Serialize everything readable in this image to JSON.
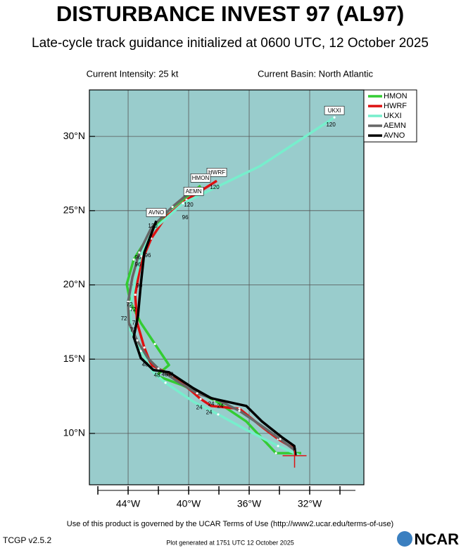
{
  "chart_data": {
    "type": "line",
    "title": "DISTURBANCE INVEST 97 (AL97)",
    "subtitle": "Late-cycle track guidance initialized at 0600 UTC, 12 October 2025",
    "intensity": "Current Intensity: 25 kt",
    "basin": "Current Basin: North Atlantic",
    "footer": "Use of this product is governed by the UCAR Terms of Use (http://www2.ucar.edu/terms-of-use)",
    "version": "TCGP v2.5.2",
    "generated": "Plot generated at 1751 UTC   12 October 2025",
    "logo": "NCAR",
    "xlim": [
      -46.56,
      -28.42
    ],
    "ylim": [
      6.54,
      33.13
    ],
    "xticks": [
      {
        "value": -44,
        "label": "44°W"
      },
      {
        "value": -40,
        "label": "40°W"
      },
      {
        "value": -36,
        "label": "36°W"
      },
      {
        "value": -32,
        "label": "32°W"
      }
    ],
    "xminor": [
      -46,
      -42,
      -38,
      -34,
      -30
    ],
    "yticks": [
      {
        "value": 10,
        "label": "10°N"
      },
      {
        "value": 15,
        "label": "15°N"
      },
      {
        "value": 20,
        "label": "20°N"
      },
      {
        "value": 25,
        "label": "25°N"
      },
      {
        "value": 30,
        "label": "30°N"
      }
    ],
    "grid": true,
    "legend": "top-right",
    "current_position": {
      "x": -33.0,
      "y": 8.5,
      "color": "#dd1111"
    },
    "series": [
      {
        "name": "HMON",
        "color": "#33cc33",
        "x": [
          -32.56,
          -34.23,
          -36.19,
          -38.28,
          -40.47,
          -42.14,
          -41.3,
          -42.23,
          -43.16,
          -43.86,
          -44.09,
          -43.63,
          -42.47,
          -41.3,
          -39.21
        ],
        "values": [
          8.67,
          8.67,
          10.81,
          12.23,
          13.27,
          13.89,
          14.6,
          16.02,
          17.44,
          18.86,
          20.05,
          21.71,
          23.6,
          25.02,
          26.68
        ]
      },
      {
        "name": "HWRF",
        "color": "#dd1111",
        "x": [
          -32.93,
          -34.09,
          -35.02,
          -36.65,
          -38.51,
          -39.21,
          -39.91,
          -41.07,
          -42.47,
          -42.93,
          -43.4,
          -43.53,
          -43.16,
          -42.47,
          -41.53,
          -40.14,
          -38.14
        ],
        "values": [
          8.91,
          9.62,
          10.33,
          11.66,
          11.85,
          12.32,
          12.94,
          13.89,
          14.6,
          15.78,
          17.44,
          19.34,
          21.47,
          23.13,
          24.55,
          25.73,
          27.01
        ]
      },
      {
        "name": "UKXI",
        "color": "#77eecc",
        "x": [
          -32.7,
          -34.09,
          -36.19,
          -38.05,
          -39.67,
          -41.53,
          -42.33,
          -43.16,
          -43.86,
          -43.86,
          -43.53,
          -43.16,
          -42.47,
          -40.37,
          -35.26,
          -30.37
        ],
        "values": [
          8.53,
          9.15,
          10.24,
          11.28,
          12.13,
          13.41,
          14.12,
          15.55,
          16.97,
          18.39,
          20.28,
          21.94,
          23.6,
          25.5,
          28.01,
          31.28
        ]
      },
      {
        "name": "AEMN",
        "color": "#666666",
        "x": [
          -32.93,
          -33.95,
          -35.26,
          -36.65,
          -38.05,
          -39.44,
          -40.6,
          -42.0,
          -42.7,
          -43.4,
          -43.95,
          -44.0,
          -43.72,
          -43.26,
          -42.47,
          -41.07,
          -39.67
        ],
        "values": [
          8.82,
          9.62,
          10.57,
          11.52,
          12.23,
          12.7,
          13.41,
          14.36,
          15.07,
          16.26,
          17.44,
          18.86,
          20.52,
          22.18,
          23.84,
          25.26,
          26.45
        ]
      },
      {
        "name": "AVNO",
        "color": "#000000",
        "x": [
          -32.93,
          -33.02,
          -33.86,
          -35.16,
          -36.19,
          -38.51,
          -39.67,
          -41.3,
          -42.33,
          -43.16,
          -43.63,
          -43.35,
          -43.16,
          -42.93,
          -42.14
        ],
        "values": [
          8.53,
          9.15,
          9.76,
          10.81,
          11.85,
          12.37,
          13.03,
          14.12,
          14.27,
          15.07,
          16.49,
          17.91,
          20.05,
          22.18,
          24.31
        ]
      }
    ],
    "annotations": [
      {
        "text": "UKXI",
        "x": -30.37,
        "y": 31.75,
        "boxed": true
      },
      {
        "text": "120",
        "x": -30.6,
        "y": 30.8
      },
      {
        "text": "HWRF",
        "x": -38.14,
        "y": 27.58,
        "boxed": true
      },
      {
        "text": "HMON",
        "x": -39.21,
        "y": 27.2,
        "boxed": true
      },
      {
        "text": "120",
        "x": -38.28,
        "y": 26.59
      },
      {
        "text": "AEMN",
        "x": -39.67,
        "y": 26.3,
        "boxed": true
      },
      {
        "text": "120",
        "x": -40.0,
        "y": 25.4
      },
      {
        "text": "96",
        "x": -40.23,
        "y": 24.55
      },
      {
        "text": "AVNO",
        "x": -42.14,
        "y": 24.88,
        "boxed": true
      },
      {
        "text": "120",
        "x": -42.37,
        "y": 23.98
      },
      {
        "text": "96",
        "x": -43.35,
        "y": 21.85
      },
      {
        "text": "96",
        "x": -42.7,
        "y": 21.99
      },
      {
        "text": "96",
        "x": -43.35,
        "y": 21.37
      },
      {
        "text": "96",
        "x": -43.26,
        "y": 19.95
      },
      {
        "text": "72",
        "x": -43.91,
        "y": 18.67
      },
      {
        "text": "72",
        "x": -43.67,
        "y": 18.34
      },
      {
        "text": "72",
        "x": -44.28,
        "y": 17.73
      },
      {
        "text": "72",
        "x": -43.53,
        "y": 17.44
      },
      {
        "text": "72",
        "x": -43.67,
        "y": 16.97
      },
      {
        "text": "48",
        "x": -42.88,
        "y": 14.64
      },
      {
        "text": "48",
        "x": -42.09,
        "y": 13.93
      },
      {
        "text": "48",
        "x": -41.58,
        "y": 13.98
      },
      {
        "text": "48",
        "x": -41.21,
        "y": 13.98
      },
      {
        "text": "24",
        "x": -39.3,
        "y": 11.75
      },
      {
        "text": "24",
        "x": -38.51,
        "y": 11.99
      },
      {
        "text": "24",
        "x": -37.91,
        "y": 11.85
      },
      {
        "text": "24",
        "x": -38.65,
        "y": 11.42
      }
    ]
  }
}
